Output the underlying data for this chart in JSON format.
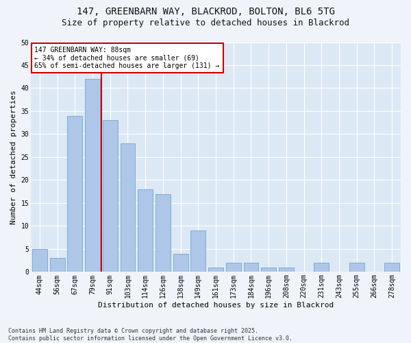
{
  "title1": "147, GREENBARN WAY, BLACKROD, BOLTON, BL6 5TG",
  "title2": "Size of property relative to detached houses in Blackrod",
  "xlabel": "Distribution of detached houses by size in Blackrod",
  "ylabel": "Number of detached properties",
  "footer1": "Contains HM Land Registry data © Crown copyright and database right 2025.",
  "footer2": "Contains public sector information licensed under the Open Government Licence v3.0.",
  "categories": [
    "44sqm",
    "56sqm",
    "67sqm",
    "79sqm",
    "91sqm",
    "103sqm",
    "114sqm",
    "126sqm",
    "138sqm",
    "149sqm",
    "161sqm",
    "173sqm",
    "184sqm",
    "196sqm",
    "208sqm",
    "220sqm",
    "231sqm",
    "243sqm",
    "255sqm",
    "266sqm",
    "278sqm"
  ],
  "values": [
    5,
    3,
    34,
    42,
    33,
    28,
    18,
    17,
    4,
    9,
    1,
    2,
    2,
    1,
    1,
    0,
    2,
    0,
    2,
    0,
    2
  ],
  "bar_color": "#aec6e8",
  "bar_edge_color": "#7aafd4",
  "vline_color": "#cc0000",
  "annotation_text": "147 GREENBARN WAY: 88sqm\n← 34% of detached houses are smaller (69)\n65% of semi-detached houses are larger (131) →",
  "annotation_box_color": "#ffffff",
  "annotation_box_edge_color": "#cc0000",
  "ylim": [
    0,
    50
  ],
  "yticks": [
    0,
    5,
    10,
    15,
    20,
    25,
    30,
    35,
    40,
    45,
    50
  ],
  "bg_color": "#dde8f5",
  "fig_color": "#f0f4fa",
  "title_fontsize": 10,
  "subtitle_fontsize": 9,
  "axis_label_fontsize": 8,
  "tick_fontsize": 7,
  "annotation_fontsize": 7,
  "footer_fontsize": 6
}
